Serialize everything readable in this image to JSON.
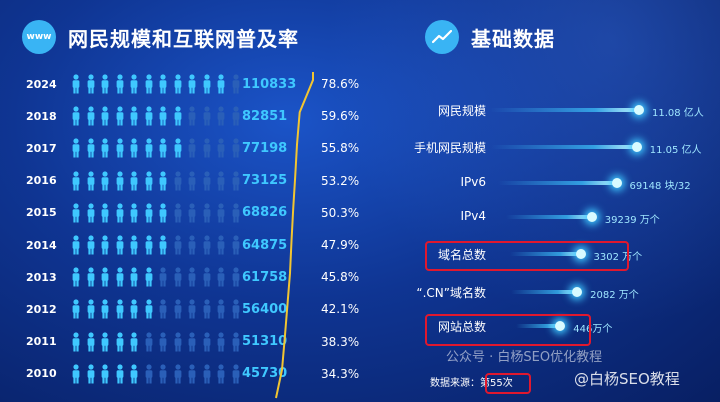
{
  "left": {
    "title": "网民规模和互联网普及率",
    "badge": "www"
  },
  "right": {
    "title": "基础数据",
    "icon": "trend-line-icon"
  },
  "source": "数据来源：第55次",
  "watermarks": [
    "公众号 · 白杨SEO优化教程",
    "@白杨SEO教程"
  ],
  "colors": {
    "accent": "#3fc8ff",
    "highlight_box": "#e0182e",
    "curve": "#f2c531"
  },
  "chart_data": [
    {
      "type": "bar",
      "categories": [
        "2024",
        "2018",
        "2017",
        "2016",
        "2015",
        "2014",
        "2013",
        "2012",
        "2011",
        "2010"
      ],
      "series": [
        {
          "values": [
            110833,
            82851,
            77198,
            73125,
            68826,
            64875,
            61758,
            56400,
            51310,
            45730
          ]
        },
        {
          "values": [
            "78.6%",
            "59.6%",
            "55.8%",
            "53.2%",
            "50.3%",
            "47.9%",
            "45.8%",
            "42.1%",
            "38.3%",
            "34.3%"
          ]
        }
      ],
      "penetration_fraction": [
        0.786,
        0.596,
        0.558,
        0.532,
        0.503,
        0.479,
        0.458,
        0.421,
        0.383,
        0.343
      ]
    },
    {
      "type": "bar",
      "categories": [
        "网民规模",
        "手机网民规模",
        "IPv6",
        "IPv4",
        "域名总数",
        "“.CN”域名数",
        "网站总数"
      ],
      "value_labels": [
        "11.08 亿人",
        "11.05 亿人",
        "69148 块/32",
        "39239 万个",
        "3302 万个",
        "2082 万个",
        "446万个"
      ],
      "relative_level": [
        1.0,
        0.98,
        0.8,
        0.58,
        0.48,
        0.45,
        0.3
      ],
      "highlighted": [
        "域名总数",
        "网站总数"
      ]
    }
  ]
}
